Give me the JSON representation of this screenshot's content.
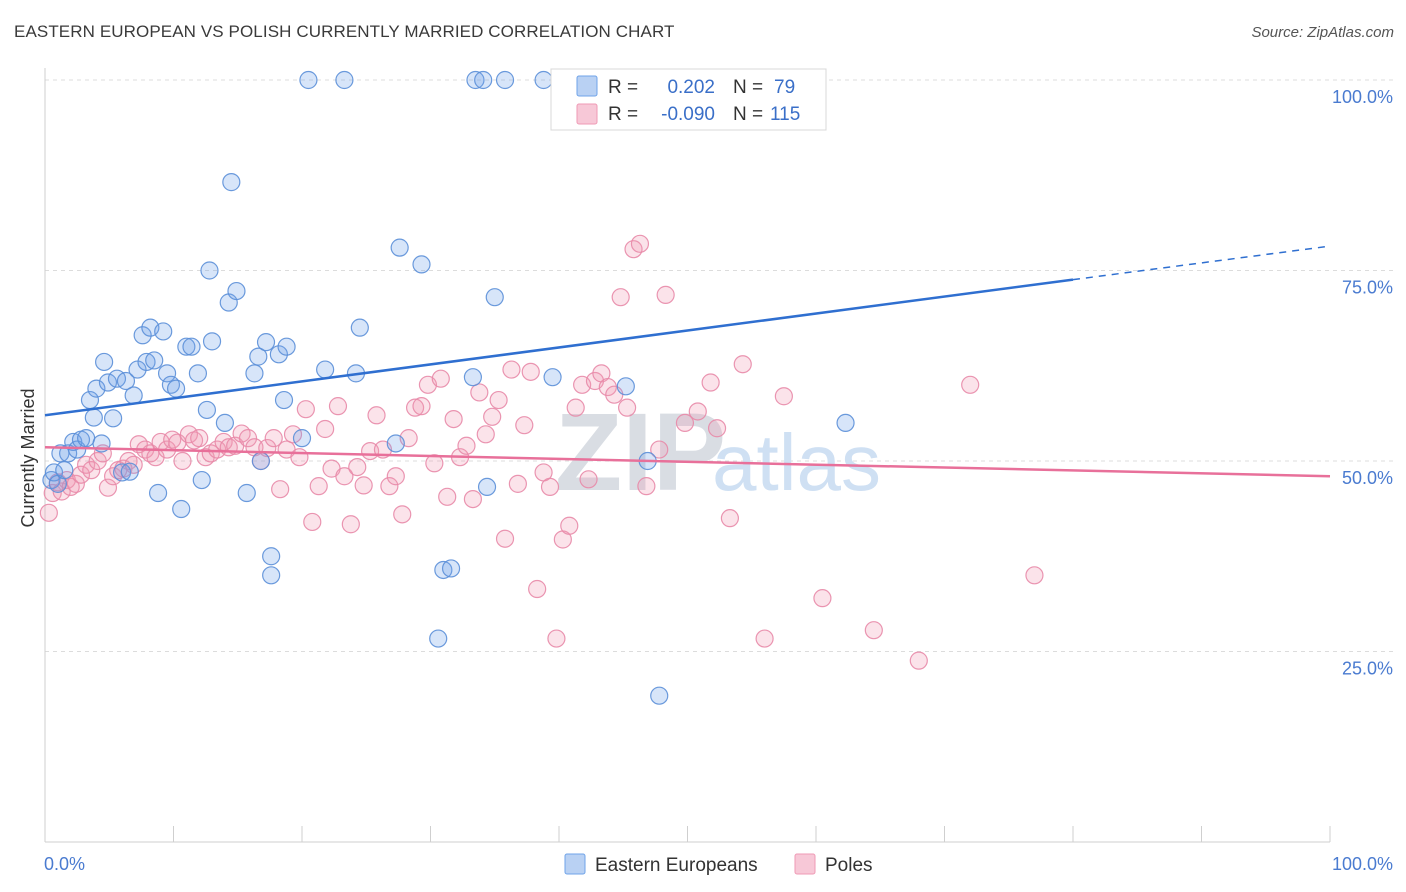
{
  "title": "EASTERN EUROPEAN VS POLISH CURRENTLY MARRIED CORRELATION CHART",
  "source": "Source: ZipAtlas.com",
  "watermark": {
    "zip": "ZIP",
    "atlas": "atlas"
  },
  "legend": {
    "rows": [
      {
        "r_label": "R =",
        "r_value": "0.202",
        "n_label": "N =",
        "n_value": "79",
        "color": "#6fa3e8"
      },
      {
        "r_label": "R =",
        "r_value": "-0.090",
        "n_label": "N =",
        "n_value": "115",
        "color": "#ef9ab5"
      }
    ]
  },
  "chart_data": {
    "type": "scatter",
    "xlabel": "",
    "ylabel": "Currently Married",
    "xlim": [
      0,
      100
    ],
    "ylim": [
      0,
      105
    ],
    "x_tick_labels": [
      "0.0%",
      "100.0%"
    ],
    "y_ticks": [
      {
        "value": 100,
        "label": "100.0%"
      },
      {
        "value": 75,
        "label": "75.0%"
      },
      {
        "value": 50,
        "label": "50.0%"
      },
      {
        "value": 25,
        "label": "25.0%"
      }
    ],
    "grid": true,
    "legend_position": "top-center",
    "series": [
      {
        "name": "Eastern Europeans",
        "color": "#6fa3e8",
        "stroke": "#5b8fd8",
        "trend": {
          "x0": 0,
          "y0": 56.0,
          "x1": 80,
          "y1": 73.8,
          "dashed_to_x": 100,
          "dashed_to_y": 78.2,
          "color": "#2f6fd0"
        },
        "points": [
          [
            0.5,
            47.5
          ],
          [
            0.7,
            48.5
          ],
          [
            1.0,
            47.0
          ],
          [
            1.2,
            51.0
          ],
          [
            1.5,
            48.8
          ],
          [
            1.8,
            51.0
          ],
          [
            2.2,
            52.5
          ],
          [
            2.5,
            51.5
          ],
          [
            2.8,
            52.8
          ],
          [
            3.2,
            53.0
          ],
          [
            3.5,
            58.0
          ],
          [
            3.8,
            55.7
          ],
          [
            4.0,
            59.5
          ],
          [
            4.4,
            52.3
          ],
          [
            4.6,
            63.0
          ],
          [
            4.9,
            60.3
          ],
          [
            5.3,
            55.6
          ],
          [
            5.6,
            60.8
          ],
          [
            6.0,
            48.5
          ],
          [
            6.3,
            60.5
          ],
          [
            6.6,
            48.6
          ],
          [
            6.9,
            58.6
          ],
          [
            7.2,
            62.0
          ],
          [
            7.6,
            66.5
          ],
          [
            7.9,
            63.0
          ],
          [
            8.2,
            67.5
          ],
          [
            8.5,
            63.2
          ],
          [
            8.8,
            45.8
          ],
          [
            9.2,
            67.0
          ],
          [
            9.5,
            61.5
          ],
          [
            9.8,
            60.0
          ],
          [
            10.2,
            59.5
          ],
          [
            10.6,
            43.7
          ],
          [
            11.0,
            65.0
          ],
          [
            11.4,
            65.0
          ],
          [
            11.9,
            61.5
          ],
          [
            12.2,
            47.5
          ],
          [
            12.6,
            56.7
          ],
          [
            12.8,
            75.0
          ],
          [
            13.0,
            65.7
          ],
          [
            14.0,
            55.0
          ],
          [
            14.3,
            70.8
          ],
          [
            14.5,
            86.6
          ],
          [
            14.9,
            72.3
          ],
          [
            15.7,
            45.8
          ],
          [
            16.3,
            61.5
          ],
          [
            16.6,
            63.7
          ],
          [
            16.8,
            50.0
          ],
          [
            17.2,
            65.6
          ],
          [
            17.6,
            37.5
          ],
          [
            17.6,
            35.0
          ],
          [
            18.2,
            64.0
          ],
          [
            18.6,
            58.0
          ],
          [
            18.8,
            65.0
          ],
          [
            20.0,
            53.0
          ],
          [
            20.5,
            100.0
          ],
          [
            21.8,
            62.0
          ],
          [
            23.3,
            100.0
          ],
          [
            24.2,
            61.5
          ],
          [
            24.5,
            67.5
          ],
          [
            27.3,
            52.3
          ],
          [
            27.6,
            78.0
          ],
          [
            29.3,
            75.8
          ],
          [
            30.6,
            26.7
          ],
          [
            31.0,
            35.7
          ],
          [
            31.6,
            35.9
          ],
          [
            33.3,
            61.0
          ],
          [
            33.5,
            100.0
          ],
          [
            34.1,
            100.0
          ],
          [
            34.4,
            46.6
          ],
          [
            35.0,
            71.5
          ],
          [
            35.8,
            100.0
          ],
          [
            38.8,
            100.0
          ],
          [
            39.5,
            61.0
          ],
          [
            45.2,
            59.8
          ],
          [
            46.9,
            50.0
          ],
          [
            47.8,
            19.2
          ],
          [
            59.5,
            100.0
          ],
          [
            62.3,
            55.0
          ]
        ]
      },
      {
        "name": "Poles",
        "color": "#ef9ab5",
        "stroke": "#e88aa8",
        "trend": {
          "x0": 0,
          "y0": 51.8,
          "x1": 100,
          "y1": 48.0,
          "color": "#e8709a"
        },
        "points": [
          [
            0.3,
            43.2
          ],
          [
            0.6,
            45.8
          ],
          [
            1.0,
            47.2
          ],
          [
            1.3,
            46.0
          ],
          [
            1.7,
            47.5
          ],
          [
            2.0,
            46.6
          ],
          [
            2.4,
            47.0
          ],
          [
            2.8,
            48.2
          ],
          [
            3.2,
            49.5
          ],
          [
            3.6,
            48.8
          ],
          [
            4.1,
            50.0
          ],
          [
            4.5,
            51.0
          ],
          [
            4.9,
            46.5
          ],
          [
            5.3,
            48.0
          ],
          [
            5.7,
            48.8
          ],
          [
            6.1,
            49.0
          ],
          [
            6.5,
            50.0
          ],
          [
            6.9,
            49.5
          ],
          [
            7.3,
            52.2
          ],
          [
            7.8,
            51.5
          ],
          [
            8.2,
            51.0
          ],
          [
            8.6,
            50.5
          ],
          [
            9.0,
            52.5
          ],
          [
            9.5,
            51.5
          ],
          [
            9.9,
            52.8
          ],
          [
            10.3,
            52.4
          ],
          [
            10.7,
            50.0
          ],
          [
            11.2,
            53.5
          ],
          [
            11.6,
            52.7
          ],
          [
            12.0,
            53.0
          ],
          [
            12.5,
            50.5
          ],
          [
            12.9,
            51.0
          ],
          [
            13.4,
            51.5
          ],
          [
            13.9,
            52.5
          ],
          [
            14.3,
            51.8
          ],
          [
            14.8,
            52.0
          ],
          [
            15.3,
            53.6
          ],
          [
            15.8,
            53.0
          ],
          [
            16.3,
            51.8
          ],
          [
            16.8,
            50.0
          ],
          [
            17.3,
            51.7
          ],
          [
            17.8,
            53.0
          ],
          [
            18.3,
            46.3
          ],
          [
            18.8,
            51.5
          ],
          [
            19.3,
            53.5
          ],
          [
            19.8,
            50.5
          ],
          [
            20.3,
            56.8
          ],
          [
            20.8,
            42.0
          ],
          [
            21.3,
            46.7
          ],
          [
            21.8,
            54.2
          ],
          [
            22.3,
            49.0
          ],
          [
            22.8,
            57.2
          ],
          [
            23.3,
            48.0
          ],
          [
            23.8,
            41.7
          ],
          [
            24.3,
            49.2
          ],
          [
            24.8,
            46.8
          ],
          [
            25.3,
            51.3
          ],
          [
            25.8,
            56.0
          ],
          [
            26.3,
            51.5
          ],
          [
            26.8,
            46.7
          ],
          [
            27.3,
            48.0
          ],
          [
            27.8,
            43.0
          ],
          [
            28.3,
            53.0
          ],
          [
            28.8,
            57.0
          ],
          [
            29.3,
            57.2
          ],
          [
            29.8,
            60.0
          ],
          [
            30.3,
            49.7
          ],
          [
            30.8,
            60.8
          ],
          [
            31.3,
            45.3
          ],
          [
            31.8,
            55.5
          ],
          [
            32.3,
            50.5
          ],
          [
            32.8,
            52.0
          ],
          [
            33.3,
            45.0
          ],
          [
            33.8,
            59.0
          ],
          [
            34.3,
            53.5
          ],
          [
            34.8,
            55.8
          ],
          [
            35.3,
            58.0
          ],
          [
            35.8,
            39.8
          ],
          [
            36.3,
            62.0
          ],
          [
            36.8,
            47.0
          ],
          [
            37.3,
            54.7
          ],
          [
            37.8,
            61.7
          ],
          [
            38.3,
            33.2
          ],
          [
            38.8,
            48.5
          ],
          [
            39.3,
            46.6
          ],
          [
            39.8,
            26.7
          ],
          [
            40.3,
            39.7
          ],
          [
            40.8,
            41.5
          ],
          [
            41.3,
            57.0
          ],
          [
            41.8,
            60.0
          ],
          [
            42.3,
            47.6
          ],
          [
            42.8,
            60.5
          ],
          [
            43.3,
            61.5
          ],
          [
            43.8,
            59.7
          ],
          [
            44.3,
            58.7
          ],
          [
            44.8,
            71.5
          ],
          [
            45.3,
            57.0
          ],
          [
            45.8,
            77.8
          ],
          [
            46.3,
            78.5
          ],
          [
            46.8,
            46.7
          ],
          [
            47.8,
            51.5
          ],
          [
            48.3,
            71.8
          ],
          [
            49.8,
            55.0
          ],
          [
            50.8,
            56.5
          ],
          [
            51.8,
            60.3
          ],
          [
            52.3,
            54.3
          ],
          [
            53.3,
            42.5
          ],
          [
            54.3,
            62.7
          ],
          [
            56.0,
            26.7
          ],
          [
            57.5,
            58.5
          ],
          [
            60.5,
            32.0
          ],
          [
            64.5,
            27.8
          ],
          [
            68.0,
            23.8
          ],
          [
            72.0,
            60.0
          ],
          [
            77.0,
            35.0
          ]
        ]
      }
    ]
  }
}
